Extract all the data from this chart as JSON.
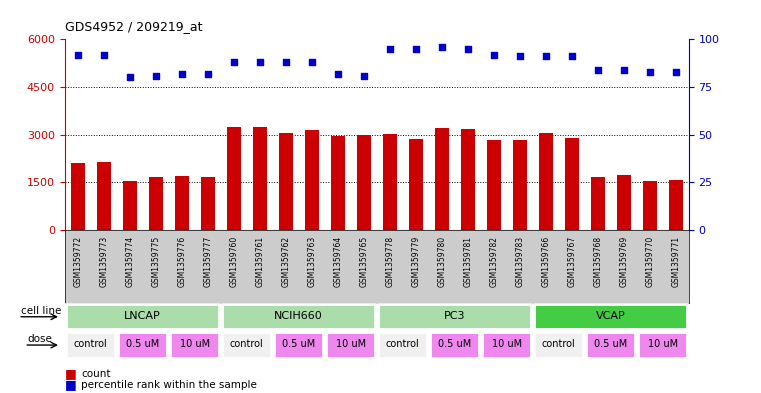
{
  "title": "GDS4952 / 209219_at",
  "samples": [
    "GSM1359772",
    "GSM1359773",
    "GSM1359774",
    "GSM1359775",
    "GSM1359776",
    "GSM1359777",
    "GSM1359760",
    "GSM1359761",
    "GSM1359762",
    "GSM1359763",
    "GSM1359764",
    "GSM1359765",
    "GSM1359778",
    "GSM1359779",
    "GSM1359780",
    "GSM1359781",
    "GSM1359782",
    "GSM1359783",
    "GSM1359766",
    "GSM1359767",
    "GSM1359768",
    "GSM1359769",
    "GSM1359770",
    "GSM1359771"
  ],
  "counts": [
    2100,
    2150,
    1550,
    1650,
    1700,
    1650,
    3250,
    3250,
    3050,
    3150,
    2950,
    2980,
    3030,
    2870,
    3200,
    3170,
    2820,
    2830,
    3050,
    2900,
    1650,
    1720,
    1550,
    1560
  ],
  "percentile_ranks": [
    92,
    92,
    80,
    81,
    82,
    82,
    88,
    88,
    88,
    88,
    82,
    81,
    95,
    95,
    96,
    95,
    92,
    91,
    91,
    91,
    84,
    84,
    83,
    83
  ],
  "cell_lines": [
    {
      "name": "LNCAP",
      "start": 0,
      "end": 6,
      "color": "#aaddaa"
    },
    {
      "name": "NCIH660",
      "start": 6,
      "end": 12,
      "color": "#aaddaa"
    },
    {
      "name": "PC3",
      "start": 12,
      "end": 18,
      "color": "#aaddaa"
    },
    {
      "name": "VCAP",
      "start": 18,
      "end": 24,
      "color": "#44cc44"
    }
  ],
  "doses": [
    {
      "label": "control",
      "start": 0,
      "end": 2,
      "color": "#f0f0f0"
    },
    {
      "label": "0.5 uM",
      "start": 2,
      "end": 4,
      "color": "#ee88ee"
    },
    {
      "label": "10 uM",
      "start": 4,
      "end": 6,
      "color": "#ee88ee"
    },
    {
      "label": "control",
      "start": 6,
      "end": 8,
      "color": "#f0f0f0"
    },
    {
      "label": "0.5 uM",
      "start": 8,
      "end": 10,
      "color": "#ee88ee"
    },
    {
      "label": "10 uM",
      "start": 10,
      "end": 12,
      "color": "#ee88ee"
    },
    {
      "label": "control",
      "start": 12,
      "end": 14,
      "color": "#f0f0f0"
    },
    {
      "label": "0.5 uM",
      "start": 14,
      "end": 16,
      "color": "#ee88ee"
    },
    {
      "label": "10 uM",
      "start": 16,
      "end": 18,
      "color": "#ee88ee"
    },
    {
      "label": "control",
      "start": 18,
      "end": 20,
      "color": "#f0f0f0"
    },
    {
      "label": "0.5 uM",
      "start": 20,
      "end": 22,
      "color": "#ee88ee"
    },
    {
      "label": "10 uM",
      "start": 22,
      "end": 24,
      "color": "#ee88ee"
    }
  ],
  "bar_color": "#CC0000",
  "dot_color": "#0000CC",
  "left_ylim": [
    0,
    6000
  ],
  "left_yticks": [
    0,
    1500,
    3000,
    4500,
    6000
  ],
  "right_ylim": [
    0,
    100
  ],
  "right_yticks": [
    0,
    25,
    50,
    75,
    100
  ],
  "xtick_bg_color": "#cccccc",
  "cell_border_color": "#ffffff",
  "dose_border_color": "#ffffff"
}
